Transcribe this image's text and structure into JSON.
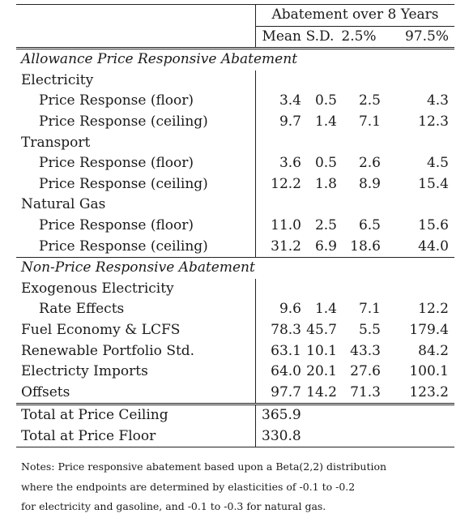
{
  "header": {
    "span_title": "Abatement over 8 Years",
    "columns": [
      "Mean",
      "S.D.",
      "2.5%",
      "97.5%"
    ]
  },
  "sections": {
    "price_title": "Allowance Price Responsive Abatement",
    "electricity": "Electricity",
    "transport": "Transport",
    "natural_gas": "Natural Gas",
    "nonprice_title": "Non-Price Responsive Abatement",
    "exog": "Exogenous Electricity"
  },
  "rows": {
    "elec_floor": {
      "label": "Price Response (floor)",
      "mean": "3.4",
      "sd": "0.5",
      "p25": "2.5",
      "p975": "4.3"
    },
    "elec_ceil": {
      "label": "Price Response (ceiling)",
      "mean": "9.7",
      "sd": "1.4",
      "p25": "7.1",
      "p975": "12.3"
    },
    "trans_floor": {
      "label": "Price Response (floor)",
      "mean": "3.6",
      "sd": "0.5",
      "p25": "2.6",
      "p975": "4.5"
    },
    "trans_ceil": {
      "label": "Price Response (ceiling)",
      "mean": "12.2",
      "sd": "1.8",
      "p25": "8.9",
      "p975": "15.4"
    },
    "gas_floor": {
      "label": "Price Response (floor)",
      "mean": "11.0",
      "sd": "2.5",
      "p25": "6.5",
      "p975": "15.6"
    },
    "gas_ceil": {
      "label": "Price Response (ceiling)",
      "mean": "31.2",
      "sd": "6.9",
      "p25": "18.6",
      "p975": "44.0"
    },
    "rate": {
      "label": "Rate Effects",
      "mean": "9.6",
      "sd": "1.4",
      "p25": "7.1",
      "p975": "12.2"
    },
    "fuel": {
      "label": "Fuel Economy & LCFS",
      "mean": "78.3",
      "sd": "45.7",
      "p25": "5.5",
      "p975": "179.4"
    },
    "rps": {
      "label": "Renewable Portfolio Std.",
      "mean": "63.1",
      "sd": "10.1",
      "p25": "43.3",
      "p975": "84.2"
    },
    "imports": {
      "label": "Electricty Imports",
      "mean": "64.0",
      "sd": "20.1",
      "p25": "27.6",
      "p975": "100.1"
    },
    "offsets": {
      "label": "Offsets",
      "mean": "97.7",
      "sd": "14.2",
      "p25": "71.3",
      "p975": "123.2"
    }
  },
  "totals": {
    "ceiling": {
      "label": "Total at Price Ceiling",
      "value": "365.9"
    },
    "floor": {
      "label": "Total at Price Floor",
      "value": "330.8"
    }
  },
  "notes": [
    "Notes: Price responsive abatement based upon a Beta(2,2) distribution",
    "where the endpoints are determined by elasticities of -0.1 to -0.2",
    "for electricity and gasoline, and -0.1 to -0.3 for natural gas."
  ]
}
